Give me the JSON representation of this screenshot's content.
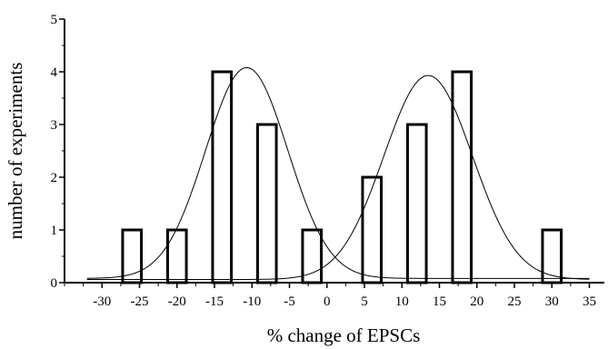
{
  "chart_data": {
    "type": "bar",
    "title": "",
    "xlabel": "% change of EPSCs",
    "ylabel": "number of experiments",
    "xlim": [
      -35,
      37
    ],
    "ylim": [
      0,
      5
    ],
    "x_ticks": [
      -30,
      -25,
      -20,
      -15,
      -10,
      -5,
      0,
      5,
      10,
      15,
      20,
      25,
      30,
      35
    ],
    "y_ticks": [
      0,
      1,
      2,
      3,
      4,
      5
    ],
    "bin_width": 2.5,
    "bars": [
      {
        "x": -26,
        "value": 1
      },
      {
        "x": -20,
        "value": 1
      },
      {
        "x": -14,
        "value": 4
      },
      {
        "x": -8,
        "value": 3
      },
      {
        "x": -2,
        "value": 1
      },
      {
        "x": 6,
        "value": 2
      },
      {
        "x": 12,
        "value": 3
      },
      {
        "x": 18,
        "value": 4
      },
      {
        "x": 30,
        "value": 1
      }
    ],
    "fit_curves": [
      {
        "type": "gaussian",
        "center": -10.7,
        "amplitude": 4.0,
        "sigma": 5.5,
        "baseline": 0.08
      },
      {
        "type": "gaussian",
        "center": 13.5,
        "amplitude": 3.87,
        "sigma": 5.9,
        "baseline": 0.06
      }
    ],
    "grid": false,
    "legend": "none"
  }
}
